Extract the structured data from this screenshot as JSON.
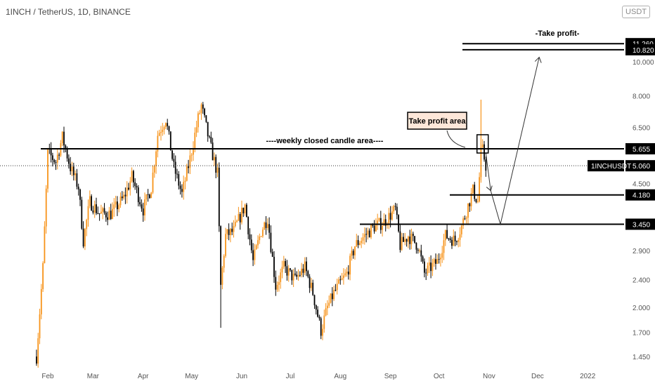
{
  "header": {
    "symbol_line": "1INCH / TetherUS, 1D, BINANCE",
    "currency_button": "USDT"
  },
  "chart_data": {
    "type": "candlestick",
    "symbol": "1INCHUSDT",
    "price_scale": "log",
    "y_ticks": [
      "1.450",
      "1.700",
      "2.000",
      "2.400",
      "2.900",
      "4.500",
      "6.500",
      "8.000",
      "10.000"
    ],
    "x_ticks": [
      "Feb",
      "Mar",
      "Apr",
      "May",
      "Jun",
      "Jul",
      "Aug",
      "Sep",
      "Oct",
      "Nov",
      "Dec",
      "2022"
    ],
    "last_price": {
      "label": "1INCHUSDT",
      "value": "5.060"
    },
    "levels": [
      {
        "value": "11.260"
      },
      {
        "value": "10.820"
      },
      {
        "value": "5.655"
      },
      {
        "value": "4.180"
      },
      {
        "value": "3.450"
      }
    ],
    "annotations": {
      "take_profit": "-Take profit-",
      "weekly_area": "----weekly closed candle area----",
      "take_profit_area": "Take profit area"
    },
    "colors": {
      "up": "#f7931a",
      "down": "#000000",
      "level_tag": "#000000",
      "take_profit_area_bg": "#fde7d9"
    },
    "price_path": [
      [
        "2021-01-25",
        1.45
      ],
      [
        "2021-01-29",
        2.6
      ],
      [
        "2021-02-01",
        5.5
      ],
      [
        "2021-02-06",
        5.2
      ],
      [
        "2021-02-10",
        6.1
      ],
      [
        "2021-02-15",
        5.0
      ],
      [
        "2021-02-20",
        4.4
      ],
      [
        "2021-02-23",
        3.1
      ],
      [
        "2021-02-27",
        4.0
      ],
      [
        "2021-03-05",
        3.7
      ],
      [
        "2021-03-12",
        3.7
      ],
      [
        "2021-03-20",
        4.1
      ],
      [
        "2021-03-25",
        4.7
      ],
      [
        "2021-04-01",
        3.8
      ],
      [
        "2021-04-06",
        4.4
      ],
      [
        "2021-04-10",
        6.2
      ],
      [
        "2021-04-15",
        6.9
      ],
      [
        "2021-04-20",
        5.0
      ],
      [
        "2021-04-25",
        4.2
      ],
      [
        "2021-04-30",
        5.3
      ],
      [
        "2021-05-05",
        6.9
      ],
      [
        "2021-05-07",
        7.5
      ],
      [
        "2021-05-12",
        5.9
      ],
      [
        "2021-05-17",
        4.8
      ],
      [
        "2021-05-19",
        2.3
      ],
      [
        "2021-05-22",
        3.2
      ],
      [
        "2021-05-27",
        3.3
      ],
      [
        "2021-06-03",
        3.9
      ],
      [
        "2021-06-08",
        2.7
      ],
      [
        "2021-06-13",
        3.3
      ],
      [
        "2021-06-17",
        3.6
      ],
      [
        "2021-06-22",
        2.3
      ],
      [
        "2021-06-27",
        2.6
      ],
      [
        "2021-07-04",
        2.4
      ],
      [
        "2021-07-10",
        2.6
      ],
      [
        "2021-07-15",
        2.2
      ],
      [
        "2021-07-20",
        1.72
      ],
      [
        "2021-07-24",
        2.0
      ],
      [
        "2021-07-28",
        2.2
      ],
      [
        "2021-08-05",
        2.5
      ],
      [
        "2021-08-10",
        3.0
      ],
      [
        "2021-08-16",
        3.2
      ],
      [
        "2021-08-22",
        3.4
      ],
      [
        "2021-08-28",
        3.5
      ],
      [
        "2021-09-04",
        3.8
      ],
      [
        "2021-09-07",
        3.0
      ],
      [
        "2021-09-12",
        3.2
      ],
      [
        "2021-09-18",
        3.0
      ],
      [
        "2021-09-22",
        2.5
      ],
      [
        "2021-09-26",
        2.6
      ],
      [
        "2021-09-30",
        2.7
      ],
      [
        "2021-10-05",
        3.2
      ],
      [
        "2021-10-11",
        3.1
      ],
      [
        "2021-10-15",
        3.4
      ],
      [
        "2021-10-19",
        3.9
      ],
      [
        "2021-10-22",
        4.3
      ],
      [
        "2021-10-25",
        4.0
      ],
      [
        "2021-10-27",
        5.5
      ],
      [
        "2021-10-28",
        5.6
      ],
      [
        "2021-10-30",
        5.06
      ]
    ],
    "projection": [
      [
        "2021-10-30",
        5.5
      ],
      [
        "2021-11-02",
        4.3
      ],
      [
        "2021-11-08",
        3.45
      ],
      [
        "2021-12-02",
        10.3
      ]
    ]
  }
}
